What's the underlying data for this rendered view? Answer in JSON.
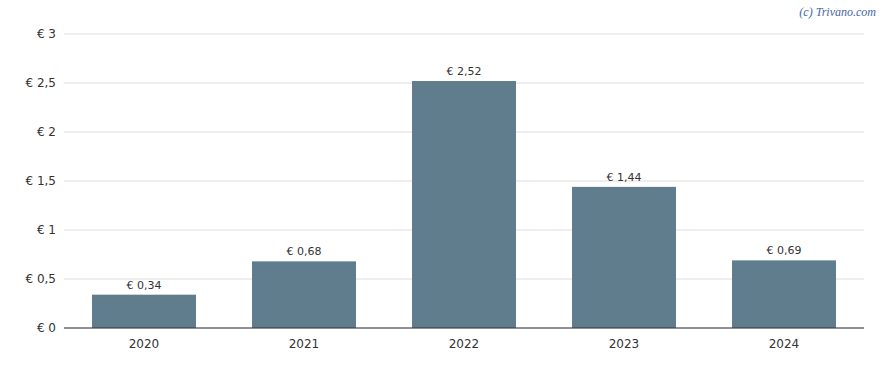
{
  "chart_data": {
    "type": "bar",
    "categories": [
      "2020",
      "2021",
      "2022",
      "2023",
      "2024"
    ],
    "values": [
      0.34,
      0.68,
      2.52,
      1.44,
      0.69
    ],
    "value_labels": [
      "€ 0,34",
      "€ 0,68",
      "€ 2,52",
      "€ 1,44",
      "€ 0,69"
    ],
    "color": "#5f7d8c",
    "ylim": [
      0,
      3.0
    ],
    "yticks": [
      {
        "value": 0,
        "label": "€ 0"
      },
      {
        "value": 0.5,
        "label": "€ 0,5"
      },
      {
        "value": 1.0,
        "label": "€ 1"
      },
      {
        "value": 1.5,
        "label": "€ 1,5"
      },
      {
        "value": 2.0,
        "label": "€ 2"
      },
      {
        "value": 2.5,
        "label": "€ 2,5"
      },
      {
        "value": 3.0,
        "label": "€ 3"
      }
    ],
    "grid": true,
    "data_labels": true,
    "annotations": [
      "(c) Trivano.com"
    ]
  }
}
